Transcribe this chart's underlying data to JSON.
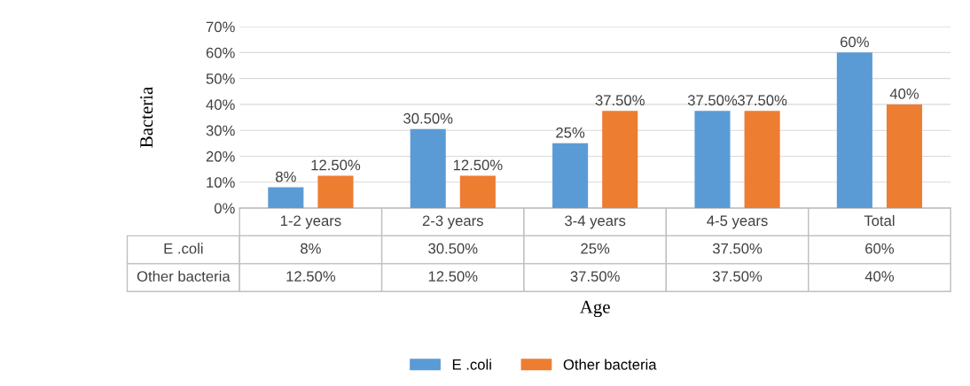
{
  "chart_data": {
    "type": "bar",
    "categories": [
      "1-2 years",
      "2-3 years",
      "3-4 years",
      "4-5 years",
      "Total"
    ],
    "series": [
      {
        "name": "E .coli",
        "color": "#5b9bd5",
        "values": [
          8,
          30.5,
          25,
          37.5,
          60
        ],
        "value_labels": [
          "8%",
          "30.50%",
          "25%",
          "37.50%",
          "60%"
        ]
      },
      {
        "name": "Other bacteria",
        "color": "#ed7d31",
        "values": [
          12.5,
          12.5,
          37.5,
          37.5,
          40
        ],
        "value_labels": [
          "12.50%",
          "12.50%",
          "37.50%",
          "37.50%",
          "40%"
        ]
      }
    ],
    "ylim": [
      0,
      70
    ],
    "yticks": [
      {
        "value": 0,
        "label": "0%"
      },
      {
        "value": 10,
        "label": "10%"
      },
      {
        "value": 20,
        "label": "20%"
      },
      {
        "value": 30,
        "label": "30%"
      },
      {
        "value": 40,
        "label": "40%"
      },
      {
        "value": 50,
        "label": "50%"
      },
      {
        "value": 60,
        "label": "60%"
      },
      {
        "value": 70,
        "label": "70%"
      }
    ],
    "xlabel": "Age",
    "ylabel": "Bacteria",
    "grid": "y",
    "legend": "bottom"
  }
}
